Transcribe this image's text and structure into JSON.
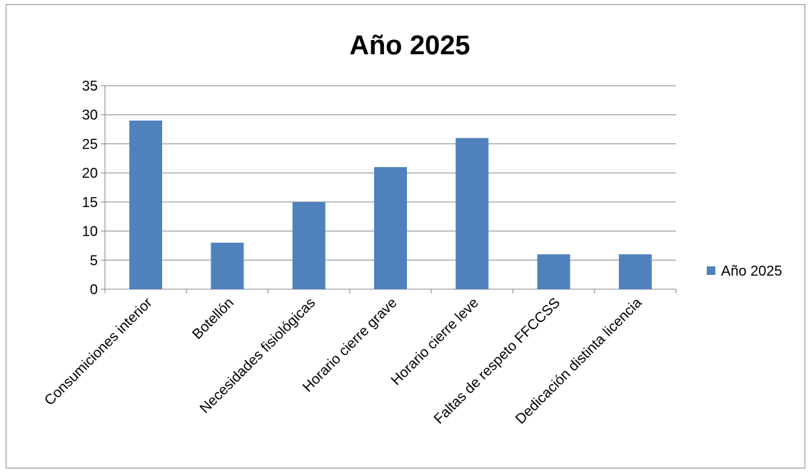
{
  "chart_data": {
    "type": "bar",
    "title": "Año 2025",
    "xlabel": "",
    "ylabel": "",
    "categories": [
      "Consumiciones interior",
      "Botellón",
      "Necesidades fisiológicas",
      "Horario cierre grave",
      "Horario cierre leve",
      "Faltas de respeto FFCCSS",
      "Dedicación distinta licencia"
    ],
    "series": [
      {
        "name": "Año 2025",
        "values": [
          29,
          8,
          15,
          21,
          26,
          6,
          6
        ],
        "color": "#4f81bd"
      }
    ],
    "ylim": [
      0,
      35
    ],
    "yticks": [
      0,
      5,
      10,
      15,
      20,
      25,
      30,
      35
    ],
    "grid": true,
    "legend_position": "right"
  }
}
